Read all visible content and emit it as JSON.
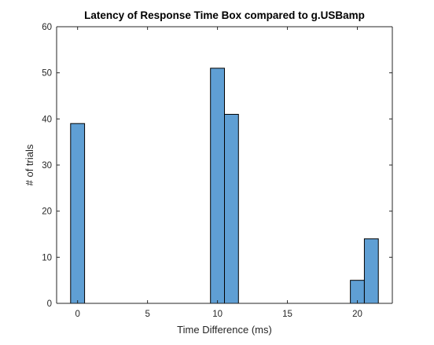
{
  "chart_data": {
    "type": "bar",
    "title": "Latency of Response Time Box compared to g.USBamp",
    "xlabel": "Time Difference (ms)",
    "ylabel": "# of trials",
    "xlim": [
      -1.5,
      22.5
    ],
    "ylim": [
      0,
      60
    ],
    "xticks": [
      0,
      5,
      10,
      15,
      20
    ],
    "yticks": [
      0,
      10,
      20,
      30,
      40,
      50,
      60
    ],
    "bin_width": 1,
    "bins": [
      {
        "x_start": -0.5,
        "x_end": 0.5,
        "count": 39
      },
      {
        "x_start": 9.5,
        "x_end": 10.5,
        "count": 51
      },
      {
        "x_start": 10.5,
        "x_end": 11.5,
        "count": 41
      },
      {
        "x_start": 19.5,
        "x_end": 20.5,
        "count": 5
      },
      {
        "x_start": 20.5,
        "x_end": 21.5,
        "count": 14
      }
    ],
    "bar_color": "#5f9fd4",
    "edge_color": "#000000",
    "grid": false,
    "box": true
  }
}
